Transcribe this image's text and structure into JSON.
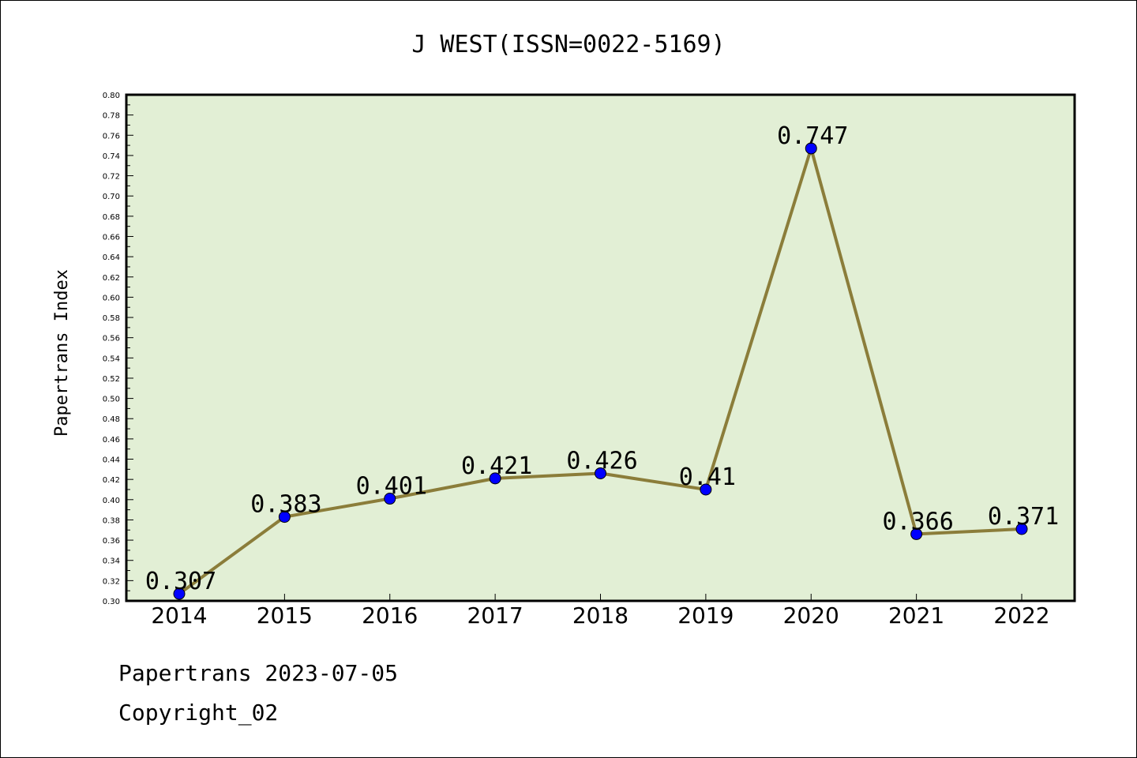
{
  "chart_data": {
    "type": "line",
    "title": "J WEST(ISSN=0022-5169)",
    "xlabel": "",
    "ylabel": "Papertrans Index",
    "categories": [
      "2014",
      "2015",
      "2016",
      "2017",
      "2018",
      "2019",
      "2020",
      "2021",
      "2022"
    ],
    "series": [
      {
        "values": [
          0.307,
          0.383,
          0.401,
          0.421,
          0.426,
          0.41,
          0.747,
          0.366,
          0.371
        ]
      }
    ],
    "data_labels": [
      "0.307",
      "0.383",
      "0.401",
      "0.421",
      "0.426",
      "0.41",
      "0.747",
      "0.366",
      "0.371"
    ],
    "ylim": [
      0.3,
      0.8
    ],
    "yticks": [
      "0.30",
      "0.32",
      "0.34",
      "0.36",
      "0.38",
      "0.40",
      "0.42",
      "0.44",
      "0.46",
      "0.48",
      "0.50",
      "0.52",
      "0.54",
      "0.56",
      "0.58",
      "0.60",
      "0.62",
      "0.64",
      "0.66",
      "0.68",
      "0.70",
      "0.72",
      "0.74",
      "0.76",
      "0.78",
      "0.80"
    ],
    "grid": false,
    "legend": "none",
    "colors": {
      "plot_background": "#e2efd5",
      "line": "#8b7d3a",
      "marker": "#0000ff"
    }
  },
  "footer": {
    "line1": "Papertrans 2023-07-05",
    "line2": "Copyright_02"
  }
}
